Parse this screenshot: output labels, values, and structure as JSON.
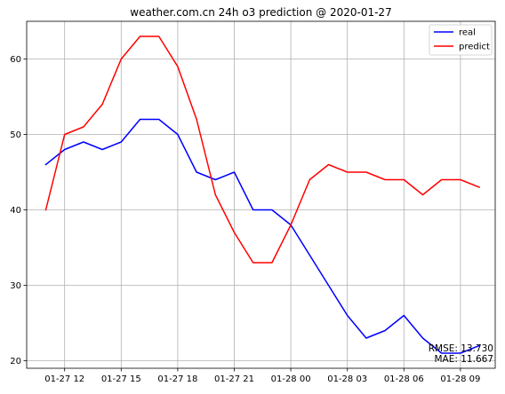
{
  "chart_data": {
    "type": "line",
    "title": "weather.com.cn 24h o3 prediction @ 2020-01-27",
    "xlabel": "",
    "ylabel": "",
    "x": [
      "01-27 11",
      "01-27 12",
      "01-27 13",
      "01-27 14",
      "01-27 15",
      "01-27 16",
      "01-27 17",
      "01-27 18",
      "01-27 19",
      "01-27 20",
      "01-27 21",
      "01-27 22",
      "01-27 23",
      "01-28 00",
      "01-28 01",
      "01-28 02",
      "01-28 03",
      "01-28 04",
      "01-28 05",
      "01-28 06",
      "01-28 07",
      "01-28 08",
      "01-28 09",
      "01-28 10"
    ],
    "series": [
      {
        "name": "real",
        "color": "#0000ff",
        "values": [
          46,
          48,
          49,
          48,
          49,
          52,
          52,
          50,
          45,
          44,
          45,
          40,
          40,
          38,
          34,
          30,
          26,
          23,
          24,
          26,
          23,
          21,
          21,
          22
        ]
      },
      {
        "name": "predict",
        "color": "#ff0000",
        "values": [
          40,
          50,
          51,
          54,
          60,
          63,
          63,
          59,
          52,
          42,
          37,
          33,
          33,
          38,
          44,
          46,
          45,
          45,
          44,
          44,
          42,
          44,
          44,
          43
        ]
      }
    ],
    "x_ticks": [
      {
        "index": 1,
        "label": "01-27 12"
      },
      {
        "index": 4,
        "label": "01-27 15"
      },
      {
        "index": 7,
        "label": "01-27 18"
      },
      {
        "index": 10,
        "label": "01-27 21"
      },
      {
        "index": 13,
        "label": "01-28 00"
      },
      {
        "index": 16,
        "label": "01-28 03"
      },
      {
        "index": 19,
        "label": "01-28 06"
      },
      {
        "index": 22,
        "label": "01-28 09"
      }
    ],
    "y_ticks": [
      20,
      30,
      40,
      50,
      60
    ],
    "ylim": [
      19,
      65
    ],
    "grid": true,
    "legend_position": "top-right",
    "annotations": [
      "RMSE: 13.730",
      "MAE: 11.667"
    ]
  }
}
